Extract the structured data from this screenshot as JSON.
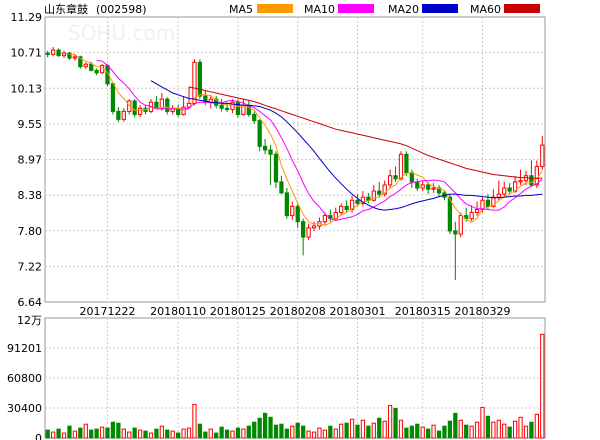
{
  "header": {
    "title": "山东章鼓",
    "code": "(002598)",
    "ma_legend": [
      {
        "label": "MA5",
        "color": "#ff9900"
      },
      {
        "label": "MA10",
        "color": "#ff00ff"
      },
      {
        "label": "MA20",
        "color": "#0000cc"
      },
      {
        "label": "MA60",
        "color": "#cc0000"
      }
    ]
  },
  "watermark": "SOHU.com",
  "colors": {
    "up": "#ff0000",
    "down": "#008800",
    "grid": "#cccccc",
    "axis": "#999999",
    "text": "#000000"
  },
  "chart_data": [
    {
      "type": "candlestick",
      "title": "山东章鼓(002598)",
      "y_ticks": [
        "11.29",
        "10.71",
        "10.13",
        "9.55",
        "8.97",
        "8.38",
        "7.80",
        "7.22",
        "6.64"
      ],
      "y_range": [
        6.64,
        11.29
      ],
      "x_ticks": [
        "20171222",
        "20180110",
        "20180125",
        "20180208",
        "20180301",
        "20180315",
        "20180329"
      ],
      "x_tick_index": [
        11,
        24,
        35,
        46,
        57,
        69,
        80
      ],
      "candles": [
        [
          10.7,
          10.68,
          10.74,
          10.63
        ],
        [
          10.68,
          10.75,
          10.8,
          10.65
        ],
        [
          10.75,
          10.66,
          10.78,
          10.64
        ],
        [
          10.66,
          10.7,
          10.74,
          10.62
        ],
        [
          10.7,
          10.62,
          10.72,
          10.59
        ],
        [
          10.62,
          10.64,
          10.68,
          10.58
        ],
        [
          10.64,
          10.48,
          10.66,
          10.45
        ],
        [
          10.48,
          10.52,
          10.55,
          10.44
        ],
        [
          10.52,
          10.42,
          10.56,
          10.4
        ],
        [
          10.42,
          10.38,
          10.45,
          10.34
        ],
        [
          10.38,
          10.5,
          10.52,
          10.36
        ],
        [
          10.5,
          10.2,
          10.52,
          10.16
        ],
        [
          10.2,
          9.75,
          10.22,
          9.7
        ],
        [
          9.75,
          9.62,
          9.82,
          9.58
        ],
        [
          9.62,
          9.75,
          9.8,
          9.58
        ],
        [
          9.75,
          9.92,
          9.95,
          9.7
        ],
        [
          9.92,
          9.7,
          9.95,
          9.65
        ],
        [
          9.7,
          9.8,
          9.85,
          9.66
        ],
        [
          9.8,
          9.75,
          9.86,
          9.7
        ],
        [
          9.75,
          9.9,
          9.95,
          9.72
        ],
        [
          9.9,
          9.8,
          10.0,
          9.78
        ],
        [
          9.8,
          9.95,
          10.05,
          9.76
        ],
        [
          9.95,
          9.75,
          9.98,
          9.7
        ],
        [
          9.75,
          9.8,
          9.85,
          9.7
        ],
        [
          9.8,
          9.7,
          9.86,
          9.66
        ],
        [
          9.7,
          9.82,
          10.0,
          9.68
        ],
        [
          9.82,
          9.88,
          10.15,
          9.8
        ],
        [
          9.88,
          10.55,
          10.6,
          9.85
        ],
        [
          10.55,
          10.0,
          10.6,
          9.95
        ],
        [
          10.0,
          9.9,
          10.1,
          9.85
        ],
        [
          9.9,
          9.95,
          10.02,
          9.8
        ],
        [
          9.95,
          9.85,
          10.0,
          9.8
        ],
        [
          9.85,
          9.8,
          9.95,
          9.75
        ],
        [
          9.8,
          9.78,
          9.9,
          9.74
        ],
        [
          9.78,
          9.9,
          9.95,
          9.72
        ],
        [
          9.9,
          9.7,
          9.95,
          9.65
        ],
        [
          9.7,
          9.85,
          9.95,
          9.68
        ],
        [
          9.85,
          9.7,
          9.92,
          9.66
        ],
        [
          9.7,
          9.6,
          9.75,
          9.55
        ],
        [
          9.6,
          9.18,
          9.62,
          9.1
        ],
        [
          9.18,
          9.12,
          9.3,
          9.05
        ],
        [
          9.12,
          9.05,
          9.2,
          8.55
        ],
        [
          9.05,
          8.6,
          9.1,
          8.5
        ],
        [
          8.6,
          8.42,
          8.7,
          8.4
        ],
        [
          8.42,
          8.05,
          8.5,
          8.0
        ],
        [
          8.05,
          8.2,
          8.28,
          7.98
        ],
        [
          8.2,
          7.95,
          8.25,
          7.85
        ],
        [
          7.95,
          7.7,
          8.0,
          7.4
        ],
        [
          7.7,
          7.85,
          7.92,
          7.65
        ],
        [
          7.85,
          7.88,
          7.95,
          7.8
        ],
        [
          7.88,
          7.95,
          8.02,
          7.82
        ],
        [
          7.95,
          8.05,
          8.1,
          7.9
        ],
        [
          8.05,
          8.0,
          8.15,
          7.95
        ],
        [
          8.0,
          8.1,
          8.18,
          7.96
        ],
        [
          8.1,
          8.2,
          8.25,
          8.05
        ],
        [
          8.2,
          8.15,
          8.3,
          8.1
        ],
        [
          8.15,
          8.3,
          8.38,
          8.1
        ],
        [
          8.3,
          8.25,
          8.4,
          8.2
        ],
        [
          8.25,
          8.35,
          8.45,
          8.2
        ],
        [
          8.35,
          8.3,
          8.42,
          8.25
        ],
        [
          8.3,
          8.45,
          8.55,
          8.28
        ],
        [
          8.45,
          8.4,
          8.6,
          8.35
        ],
        [
          8.4,
          8.55,
          8.62,
          8.36
        ],
        [
          8.55,
          8.7,
          8.8,
          8.5
        ],
        [
          8.7,
          8.65,
          8.85,
          8.6
        ],
        [
          8.65,
          9.05,
          9.1,
          8.62
        ],
        [
          9.05,
          8.75,
          9.1,
          8.7
        ],
        [
          8.75,
          8.6,
          8.8,
          8.5
        ],
        [
          8.6,
          8.5,
          8.65,
          8.45
        ],
        [
          8.5,
          8.55,
          8.62,
          8.45
        ],
        [
          8.55,
          8.48,
          8.6,
          8.4
        ],
        [
          8.48,
          8.5,
          8.58,
          8.42
        ],
        [
          8.5,
          8.42,
          8.55,
          8.35
        ],
        [
          8.42,
          8.35,
          8.46,
          8.3
        ],
        [
          8.35,
          7.8,
          8.4,
          7.75
        ],
        [
          7.8,
          7.75,
          7.95,
          7.0
        ],
        [
          7.75,
          8.05,
          8.1,
          7.7
        ],
        [
          8.05,
          8.0,
          8.18,
          7.95
        ],
        [
          8.0,
          8.1,
          8.22,
          7.96
        ],
        [
          8.1,
          8.15,
          8.28,
          8.05
        ],
        [
          8.15,
          8.3,
          8.35,
          8.1
        ],
        [
          8.3,
          8.2,
          8.4,
          8.15
        ],
        [
          8.2,
          8.35,
          8.48,
          8.18
        ],
        [
          8.35,
          8.4,
          8.62,
          8.3
        ],
        [
          8.4,
          8.5,
          8.6,
          8.35
        ],
        [
          8.5,
          8.45,
          8.58,
          8.4
        ],
        [
          8.45,
          8.6,
          8.7,
          8.42
        ],
        [
          8.6,
          8.62,
          8.8,
          8.55
        ],
        [
          8.62,
          8.7,
          8.78,
          8.55
        ],
        [
          8.7,
          8.55,
          8.95,
          8.52
        ],
        [
          8.55,
          8.85,
          8.95,
          8.5
        ],
        [
          8.85,
          9.2,
          9.35,
          8.8
        ]
      ],
      "ma": {
        "MA5": [
          null,
          null,
          null,
          null,
          10.68,
          10.68,
          10.61,
          10.57,
          10.53,
          10.48,
          10.47,
          10.38,
          10.22,
          10.05,
          9.96,
          9.85,
          9.77,
          9.77,
          9.78,
          9.82,
          9.8,
          9.81,
          9.82,
          9.8,
          9.8,
          9.77,
          9.79,
          9.97,
          10.02,
          10.02,
          10.0,
          9.94,
          9.88,
          9.85,
          9.86,
          9.83,
          9.84,
          9.81,
          9.77,
          9.64,
          9.52,
          9.38,
          9.18,
          8.87,
          8.65,
          8.45,
          8.25,
          8.07,
          7.95,
          7.91,
          7.92,
          7.89,
          7.93,
          8.0,
          8.06,
          8.1,
          8.16,
          8.22,
          8.27,
          8.29,
          8.33,
          8.35,
          8.42,
          8.5,
          8.55,
          8.67,
          8.74,
          8.75,
          8.71,
          8.68,
          8.57,
          8.53,
          8.49,
          8.46,
          8.31,
          8.17,
          8.07,
          7.99,
          7.94,
          8.01,
          8.16,
          8.19,
          8.22,
          8.29,
          8.36,
          8.4,
          8.46,
          8.53,
          8.58,
          8.59,
          8.65,
          8.78
        ],
        "MA10": [
          null,
          null,
          null,
          null,
          null,
          null,
          null,
          null,
          null,
          10.58,
          10.57,
          10.5,
          10.4,
          10.29,
          10.21,
          10.12,
          10.0,
          9.9,
          9.85,
          9.83,
          9.79,
          9.79,
          9.79,
          9.79,
          9.78,
          9.79,
          9.8,
          9.88,
          9.9,
          9.9,
          9.89,
          9.88,
          9.89,
          9.92,
          9.93,
          9.91,
          9.89,
          9.84,
          9.81,
          9.75,
          9.68,
          9.61,
          9.48,
          9.32,
          9.15,
          8.95,
          8.78,
          8.58,
          8.41,
          8.28,
          8.19,
          8.08,
          8.0,
          7.97,
          7.99,
          8.01,
          8.03,
          8.07,
          8.13,
          8.15,
          8.19,
          8.24,
          8.29,
          8.36,
          8.41,
          8.48,
          8.55,
          8.59,
          8.6,
          8.62,
          8.62,
          8.63,
          8.62,
          8.6,
          8.51,
          8.42,
          8.32,
          8.24,
          8.2,
          8.16,
          8.16,
          8.15,
          8.14,
          8.14,
          8.19,
          8.28,
          8.34,
          8.41,
          8.48,
          8.53,
          8.57,
          8.64
        ]
      },
      "ma_line_values": {
        "MA20": [
          null,
          null,
          null,
          null,
          null,
          null,
          null,
          null,
          null,
          null,
          null,
          null,
          null,
          null,
          null,
          null,
          null,
          null,
          null,
          10.25,
          10.2,
          10.15,
          10.1,
          10.05,
          10.02,
          9.99,
          9.96,
          9.95,
          9.93,
          9.92,
          9.9,
          9.89,
          9.88,
          9.88,
          9.87,
          9.86,
          9.85,
          9.85,
          9.84,
          9.83,
          9.8,
          9.77,
          9.72,
          9.66,
          9.58,
          9.49,
          9.4,
          9.3,
          9.2,
          9.1,
          8.98,
          8.87,
          8.76,
          8.66,
          8.57,
          8.48,
          8.4,
          8.33,
          8.27,
          8.22,
          8.18,
          8.15,
          8.14,
          8.15,
          8.16,
          8.18,
          8.21,
          8.24,
          8.27,
          8.29,
          8.31,
          8.33,
          8.36,
          8.38,
          8.4,
          8.4,
          8.39,
          8.38,
          8.38,
          8.37,
          8.36,
          8.35,
          8.34,
          8.34,
          8.35,
          8.36,
          8.37,
          8.37,
          8.38,
          8.38,
          8.39,
          8.4
        ],
        "MA60": [
          null,
          null,
          null,
          null,
          null,
          null,
          null,
          null,
          null,
          null,
          null,
          null,
          null,
          null,
          null,
          null,
          null,
          null,
          null,
          null,
          null,
          null,
          null,
          null,
          null,
          null,
          10.15,
          10.13,
          10.11,
          10.09,
          10.07,
          10.05,
          10.03,
          10.01,
          9.99,
          9.97,
          9.95,
          9.93,
          9.91,
          9.88,
          9.85,
          9.82,
          9.79,
          9.76,
          9.73,
          9.7,
          9.67,
          9.64,
          9.61,
          9.58,
          9.55,
          9.52,
          9.49,
          9.46,
          9.44,
          9.42,
          9.4,
          9.38,
          9.36,
          9.34,
          9.32,
          9.3,
          9.28,
          9.26,
          9.24,
          9.22,
          9.19,
          9.15,
          9.11,
          9.07,
          9.03,
          9.0,
          8.97,
          8.94,
          8.91,
          8.88,
          8.85,
          8.82,
          8.8,
          8.78,
          8.76,
          8.74,
          8.72,
          8.71,
          8.7,
          8.69,
          8.68,
          8.67,
          8.67,
          8.66,
          8.66,
          8.66
        ]
      }
    },
    {
      "type": "bar",
      "unit_label": "12万",
      "y_ticks": [
        "91201",
        "60800",
        "30400",
        "0"
      ],
      "y_range": [
        0,
        121600
      ],
      "values": [
        8000,
        6000,
        9000,
        5000,
        12000,
        7000,
        10000,
        14000,
        8000,
        9000,
        11000,
        10000,
        16000,
        15000,
        9000,
        6000,
        10000,
        8000,
        7000,
        5000,
        9000,
        12000,
        8000,
        7000,
        5000,
        9000,
        10000,
        34000,
        14000,
        6000,
        9000,
        5000,
        11000,
        8000,
        7000,
        10000,
        9000,
        12000,
        16000,
        20000,
        25000,
        21000,
        13000,
        14000,
        9000,
        12000,
        15000,
        12000,
        7000,
        6000,
        10000,
        8000,
        12000,
        9000,
        14000,
        15000,
        19000,
        13000,
        18000,
        12000,
        15000,
        20000,
        17000,
        33000,
        30000,
        18000,
        10000,
        12000,
        14000,
        11000,
        9000,
        13000,
        7000,
        12000,
        17000,
        25000,
        18000,
        13000,
        12000,
        16000,
        31000,
        22000,
        16000,
        18000,
        14000,
        11000,
        17000,
        21000,
        12000,
        16000,
        24000,
        105000
      ],
      "up": [
        false,
        true,
        false,
        true,
        false,
        true,
        false,
        true,
        false,
        false,
        true,
        false,
        false,
        false,
        true,
        true,
        false,
        true,
        false,
        true,
        false,
        true,
        false,
        true,
        false,
        true,
        true,
        true,
        false,
        false,
        true,
        false,
        false,
        false,
        true,
        false,
        true,
        false,
        false,
        false,
        false,
        false,
        false,
        false,
        false,
        true,
        false,
        false,
        true,
        true,
        true,
        true,
        false,
        true,
        true,
        false,
        true,
        false,
        true,
        false,
        true,
        false,
        true,
        true,
        false,
        true,
        false,
        false,
        false,
        true,
        false,
        true,
        false,
        false,
        false,
        false,
        true,
        false,
        true,
        true,
        true,
        false,
        true,
        true,
        true,
        false,
        true,
        true,
        true,
        false,
        true,
        true
      ]
    }
  ]
}
